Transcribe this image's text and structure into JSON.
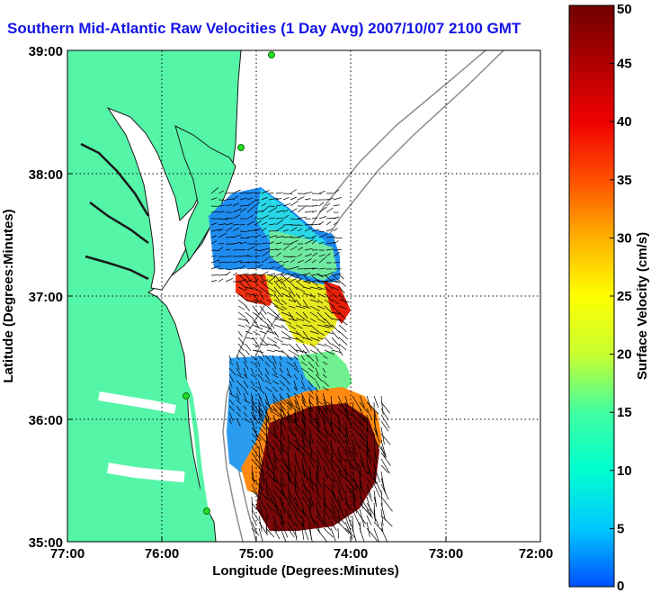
{
  "title": "Southern Mid-Atlantic Raw Velocities (1 Day Avg) 2007/10/07 2100 GMT",
  "map": {
    "xlabel": "Longitude (Degrees:Minutes)",
    "ylabel": "Latitude (Degrees:Minutes)",
    "x_ticks": [
      "77:00",
      "76:00",
      "75:00",
      "74:00",
      "73:00",
      "72:00"
    ],
    "y_ticks": [
      "39:00",
      "38:00",
      "37:00",
      "36:00",
      "35:00"
    ],
    "colors": {
      "land": "#55f5a8",
      "water": "#ffffff",
      "coast": "#1a1a1a",
      "bathymetry": "#8c8c8c",
      "grid": "#000000",
      "station": "#22dd22"
    }
  },
  "colorbar": {
    "label": "Surface Velocity (cm/s)",
    "ticks": [
      "50",
      "45",
      "40",
      "35",
      "30",
      "25",
      "20",
      "15",
      "10",
      "5",
      "0"
    ],
    "range": [
      0,
      50
    ],
    "colors": [
      "#0050ff",
      "#00c8ff",
      "#00ffd0",
      "#40ffa0",
      "#c8ff30",
      "#ffff00",
      "#ffb000",
      "#ff5000",
      "#f00000",
      "#b00000",
      "#700000"
    ]
  }
}
